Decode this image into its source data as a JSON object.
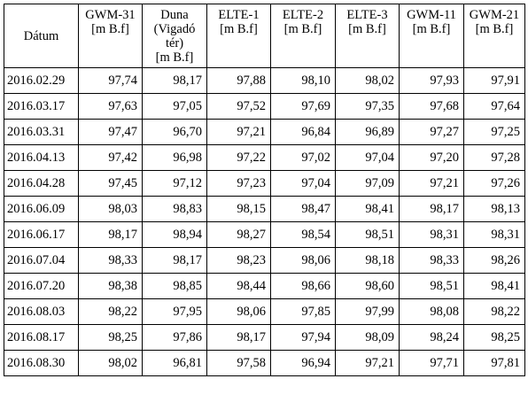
{
  "table": {
    "headers": [
      {
        "lines": [
          "Dátum"
        ]
      },
      {
        "lines": [
          "GWM-31",
          "[m B.f]"
        ]
      },
      {
        "lines": [
          "Duna",
          "(Vigadó",
          "tér)",
          "[m B.f]"
        ]
      },
      {
        "lines": [
          "ELTE-1",
          "[m B.f]"
        ]
      },
      {
        "lines": [
          "ELTE-2",
          "[m B.f]"
        ]
      },
      {
        "lines": [
          "ELTE-3",
          "[m B.f]"
        ]
      },
      {
        "lines": [
          "GWM-11",
          "[m B.f]"
        ]
      },
      {
        "lines": [
          "GWM-21",
          "[m B.f]"
        ]
      }
    ],
    "rows": [
      [
        "2016.02.29",
        "97,74",
        "98,17",
        "97,88",
        "98,10",
        "98,02",
        "97,93",
        "97,91"
      ],
      [
        "2016.03.17",
        "97,63",
        "97,05",
        "97,52",
        "97,69",
        "97,35",
        "97,68",
        "97,64"
      ],
      [
        "2016.03.31",
        "97,47",
        "96,70",
        "97,21",
        "96,84",
        "96,89",
        "97,27",
        "97,25"
      ],
      [
        "2016.04.13",
        "97,42",
        "96,98",
        "97,22",
        "97,02",
        "97,04",
        "97,20",
        "97,28"
      ],
      [
        "2016.04.28",
        "97,45",
        "97,12",
        "97,23",
        "97,04",
        "97,09",
        "97,21",
        "97,26"
      ],
      [
        "2016.06.09",
        "98,03",
        "98,83",
        "98,15",
        "98,47",
        "98,41",
        "98,17",
        "98,13"
      ],
      [
        "2016.06.17",
        "98,17",
        "98,94",
        "98,27",
        "98,54",
        "98,51",
        "98,31",
        "98,31"
      ],
      [
        "2016.07.04",
        "98,33",
        "98,17",
        "98,23",
        "98,06",
        "98,18",
        "98,33",
        "98,26"
      ],
      [
        "2016.07.20",
        "98,38",
        "98,85",
        "98,44",
        "98,66",
        "98,60",
        "98,51",
        "98,41"
      ],
      [
        "2016.08.03",
        "98,22",
        "97,95",
        "98,06",
        "97,85",
        "97,99",
        "98,08",
        "98,22"
      ],
      [
        "2016.08.17",
        "98,25",
        "97,86",
        "98,17",
        "97,94",
        "98,09",
        "98,24",
        "98,25"
      ],
      [
        "2016.08.30",
        "98,02",
        "96,81",
        "97,58",
        "96,94",
        "97,21",
        "97,71",
        "97,81"
      ]
    ]
  }
}
